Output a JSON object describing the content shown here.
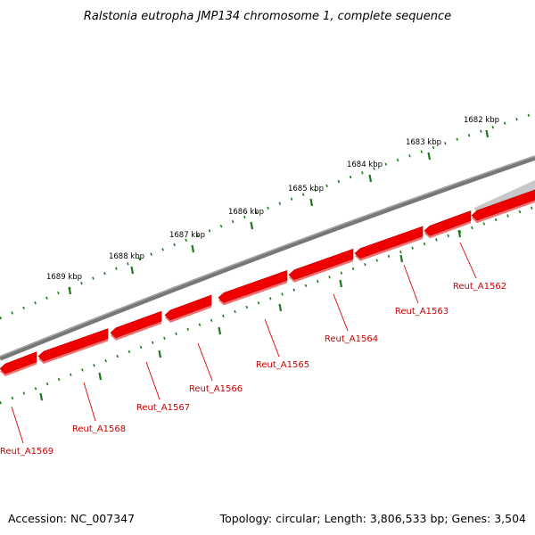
{
  "title": "Ralstonia eutropha JMP134 chromosome 1, complete sequence",
  "footer": {
    "accession": "Accession: NC_007347",
    "summary": "Topology: circular; Length: 3,806,533 bp; Genes: 3,504"
  },
  "ticks": [
    "1682 kbp",
    "1683 kbp",
    "1684 kbp",
    "1685 kbp",
    "1686 kbp",
    "1687 kbp",
    "1688 kbp",
    "1689 kbp"
  ],
  "genes": [
    "Reut_A1562",
    "Reut_A1563",
    "Reut_A1564",
    "Reut_A1565",
    "Reut_A1566",
    "Reut_A1567",
    "Reut_A1568",
    "Reut_A1569"
  ],
  "colors": {
    "backbone": "#777777",
    "gene_fill": "#ee0000",
    "gene_shadow": "#f07070",
    "gene_label": "#cc0000",
    "leader_line": "#dd0000",
    "tick_marks": "#1e7a1e",
    "grey_feature": "#c8c8c8"
  }
}
